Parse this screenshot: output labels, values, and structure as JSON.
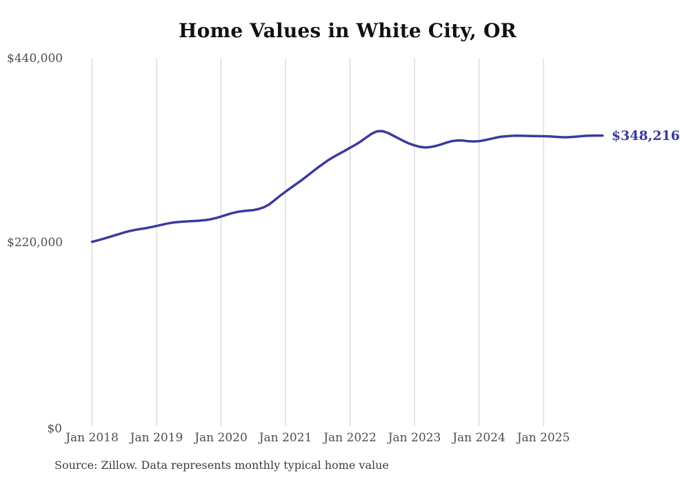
{
  "page": {
    "title": "Home Values in White City, OR",
    "source_note": "Source: Zillow. Data represents monthly typical home value"
  },
  "chart_data": {
    "type": "line",
    "title": "Home Values in White City, OR",
    "xlabel": "",
    "ylabel": "",
    "ylim": [
      0,
      440000
    ],
    "grid": "vertical-only",
    "legend": "none",
    "line_color": "#3a3a9e",
    "gridline_color": "#cccccc",
    "end_label": "$348,216",
    "end_value": 348216,
    "y_ticks": [
      {
        "label": "$440,000",
        "value": 440000
      },
      {
        "label": "$220,000",
        "value": 220000
      },
      {
        "label": "$0",
        "value": 0
      }
    ],
    "x_ticks": [
      "Jan 2018",
      "Jan 2019",
      "Jan 2020",
      "Jan 2021",
      "Jan 2022",
      "Jan 2023",
      "Jan 2024",
      "Jan 2025"
    ],
    "x_interval": "monthly",
    "x_start": "Jan 2018",
    "x_end": "Dec 2025",
    "series": [
      {
        "name": "Typical home value",
        "color": "#3a3a9e",
        "values": [
          221500,
          223100,
          224900,
          226800,
          228800,
          230800,
          232700,
          234300,
          235700,
          236800,
          237800,
          239100,
          240400,
          241900,
          243300,
          244400,
          245100,
          245600,
          246000,
          246300,
          246700,
          247300,
          248300,
          249800,
          251600,
          253600,
          255600,
          257100,
          258100,
          258700,
          259300,
          260600,
          262800,
          266200,
          271300,
          276500,
          281300,
          286000,
          290500,
          295000,
          300000,
          305000,
          310000,
          314500,
          319000,
          323000,
          326500,
          330000,
          333700,
          337200,
          341200,
          345800,
          350300,
          353300,
          353600,
          351500,
          348300,
          344900,
          341600,
          338800,
          336500,
          334800,
          334000,
          334600,
          335900,
          337800,
          339900,
          341600,
          342500,
          342300,
          341500,
          341200,
          341500,
          342600,
          344000,
          345500,
          346700,
          347400,
          347900,
          348100,
          348000,
          347800,
          347700,
          347600,
          347500,
          347200,
          346800,
          346400,
          346200,
          346400,
          346900,
          347500,
          348000,
          348150,
          348200,
          348216
        ]
      }
    ]
  }
}
